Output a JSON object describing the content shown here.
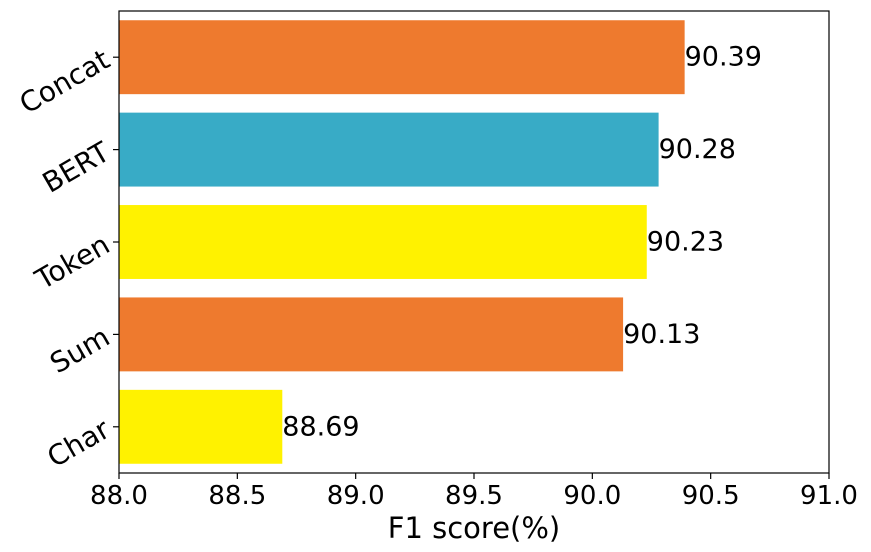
{
  "chart_data": {
    "type": "bar",
    "orientation": "horizontal",
    "title": "",
    "xlabel": "F1 score(%)",
    "ylabel": "",
    "xlim": [
      88.0,
      91.0
    ],
    "xticks": [
      "88.0",
      "88.5",
      "89.0",
      "89.5",
      "90.0",
      "90.5",
      "91.0"
    ],
    "categories": [
      "Concat",
      "BERT",
      "Token",
      "Sum",
      "Char"
    ],
    "values": [
      90.39,
      90.28,
      90.23,
      90.13,
      88.69
    ],
    "value_labels": [
      "90.39",
      "90.28",
      "90.23",
      "90.13",
      "88.69"
    ],
    "colors": [
      "#ee7a2e",
      "#38abc6",
      "#fff200",
      "#ee7a2e",
      "#fff200"
    ],
    "grid": false,
    "legend": "none"
  }
}
